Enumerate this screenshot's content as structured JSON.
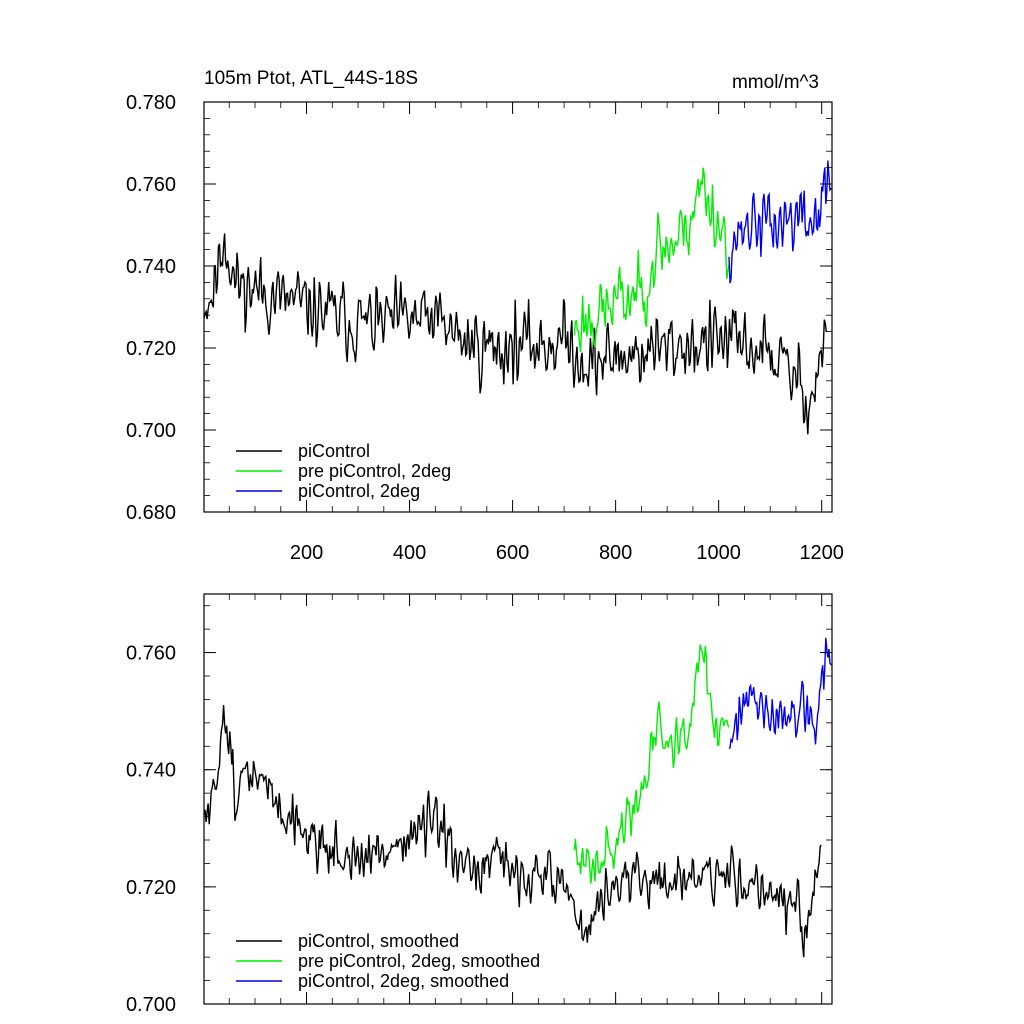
{
  "chart_data": [
    {
      "type": "line",
      "title": "105m Ptot, ATL_44S-18S",
      "units": "mmol/m^3",
      "xlim": [
        1,
        1220
      ],
      "ylim": [
        0.68,
        0.78
      ],
      "x_ticks": [
        200,
        400,
        600,
        800,
        1000,
        1200
      ],
      "x_tick_labels": [
        "200",
        "400",
        "600",
        "800",
        "1000",
        "1200"
      ],
      "y_ticks": [
        0.68,
        0.7,
        0.72,
        0.74,
        0.76,
        0.78
      ],
      "y_tick_labels": [
        "0.680",
        "0.700",
        "0.720",
        "0.740",
        "0.760",
        "0.780"
      ],
      "legend_position": "bottom-left",
      "series": [
        {
          "name": "piControl",
          "color": "#000000",
          "noise": 0.0085,
          "seed": 11,
          "anchors": [
            [
              1,
              0.731
            ],
            [
              20,
              0.734
            ],
            [
              40,
              0.748
            ],
            [
              60,
              0.736
            ],
            [
              150,
              0.732
            ],
            [
              300,
              0.726
            ],
            [
              450,
              0.727
            ],
            [
              500,
              0.722
            ],
            [
              560,
              0.72
            ],
            [
              650,
              0.721
            ],
            [
              700,
              0.722
            ],
            [
              750,
              0.716
            ],
            [
              800,
              0.718
            ],
            [
              900,
              0.72
            ],
            [
              1000,
              0.722
            ],
            [
              1100,
              0.719
            ],
            [
              1150,
              0.712
            ],
            [
              1180,
              0.708
            ],
            [
              1210,
              0.724
            ]
          ]
        },
        {
          "name": "pre piControl, 2deg",
          "color": "#00ee00",
          "noise": 0.0085,
          "seed": 23,
          "anchors": [
            [
              720,
              0.725
            ],
            [
              760,
              0.728
            ],
            [
              800,
              0.731
            ],
            [
              850,
              0.734
            ],
            [
              880,
              0.744
            ],
            [
              920,
              0.746
            ],
            [
              950,
              0.754
            ],
            [
              970,
              0.76
            ],
            [
              1000,
              0.75
            ],
            [
              1020,
              0.746
            ]
          ]
        },
        {
          "name": "piControl, 2deg",
          "color": "#0000ee",
          "noise": 0.0085,
          "seed": 37,
          "anchors": [
            [
              1020,
              0.745
            ],
            [
              1060,
              0.751
            ],
            [
              1100,
              0.75
            ],
            [
              1150,
              0.752
            ],
            [
              1180,
              0.75
            ],
            [
              1200,
              0.756
            ],
            [
              1220,
              0.762
            ]
          ]
        }
      ]
    },
    {
      "type": "line",
      "title": "",
      "units": "",
      "xlim": [
        1,
        1220
      ],
      "ylim": [
        0.7,
        0.77
      ],
      "x_ticks": [
        200,
        400,
        600,
        800,
        1000,
        1200
      ],
      "x_tick_labels": [],
      "y_ticks": [
        0.7,
        0.72,
        0.74,
        0.76
      ],
      "y_tick_labels": [
        "0.700",
        "0.720",
        "0.740",
        "0.760"
      ],
      "legend_position": "bottom-left",
      "series": [
        {
          "name": "piControl, smoothed",
          "color": "#000000",
          "noise": 0.0045,
          "seed": 51,
          "anchors": [
            [
              1,
              0.731
            ],
            [
              20,
              0.734
            ],
            [
              40,
              0.752
            ],
            [
              60,
              0.737
            ],
            [
              100,
              0.739
            ],
            [
              200,
              0.729
            ],
            [
              300,
              0.724
            ],
            [
              450,
              0.731
            ],
            [
              500,
              0.722
            ],
            [
              560,
              0.724
            ],
            [
              650,
              0.722
            ],
            [
              700,
              0.721
            ],
            [
              740,
              0.712
            ],
            [
              800,
              0.721
            ],
            [
              900,
              0.721
            ],
            [
              1000,
              0.722
            ],
            [
              1100,
              0.72
            ],
            [
              1150,
              0.716
            ],
            [
              1170,
              0.71
            ],
            [
              1200,
              0.727
            ]
          ]
        },
        {
          "name": "pre piControl, 2deg, smoothed",
          "color": "#00ee00",
          "noise": 0.0045,
          "seed": 63,
          "anchors": [
            [
              720,
              0.724
            ],
            [
              800,
              0.727
            ],
            [
              850,
              0.736
            ],
            [
              880,
              0.748
            ],
            [
              920,
              0.745
            ],
            [
              950,
              0.753
            ],
            [
              970,
              0.762
            ],
            [
              990,
              0.749
            ],
            [
              1020,
              0.746
            ]
          ]
        },
        {
          "name": "piControl, 2deg, smoothed",
          "color": "#0000ee",
          "noise": 0.0045,
          "seed": 77,
          "anchors": [
            [
              1020,
              0.745
            ],
            [
              1060,
              0.752
            ],
            [
              1100,
              0.748
            ],
            [
              1150,
              0.75
            ],
            [
              1190,
              0.748
            ],
            [
              1210,
              0.76
            ],
            [
              1220,
              0.758
            ]
          ]
        }
      ]
    }
  ]
}
